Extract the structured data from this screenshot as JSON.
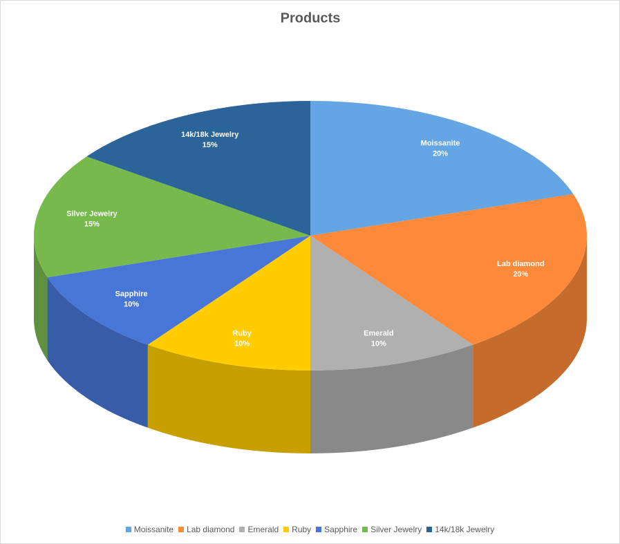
{
  "chart_data": {
    "type": "pie3d",
    "title": "Products",
    "categories": [
      "Moissanite",
      "Lab diamond",
      "Emerald",
      "Ruby",
      "Sapphire",
      "Silver Jewelry",
      "14k/18k Jewelry"
    ],
    "values": [
      20,
      20,
      10,
      10,
      10,
      15,
      15
    ],
    "value_labels": [
      "20%",
      "20%",
      "10%",
      "10%",
      "10%",
      "15%",
      "15%"
    ],
    "colors": [
      "#64a5e4",
      "#fd8a3a",
      "#b0b0b0",
      "#ffcc00",
      "#4876d6",
      "#78b94e",
      "#2b6498"
    ]
  }
}
